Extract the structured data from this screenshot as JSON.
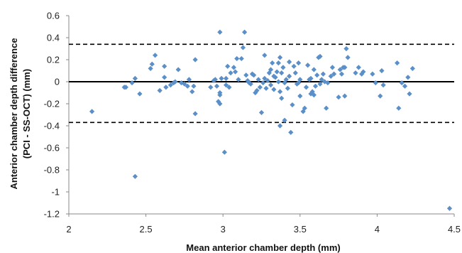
{
  "chart_data": {
    "type": "scatter",
    "title": "",
    "xlabel": "Mean anterior chamber depth (mm)",
    "ylabel_lines": [
      "Anterior chamber depth difference",
      "(PCI - SS-OCT) (mm)"
    ],
    "xlim": [
      2,
      4.5
    ],
    "ylim": [
      -1.2,
      0.6
    ],
    "x_ticks": [
      "2",
      "2.5",
      "3",
      "3.5",
      "4",
      "4.5"
    ],
    "y_ticks": [
      "0.6",
      "0.4",
      "0.2",
      "0",
      "-0.2",
      "-0.4",
      "-0.6",
      "-0.8",
      "-1",
      "-1.2"
    ],
    "grid": false,
    "legend": "none",
    "marker_color": "#5b8fc8",
    "reference_lines": [
      {
        "y": 0,
        "style": "solid"
      },
      {
        "y": 0.34,
        "style": "dashed"
      },
      {
        "y": -0.37,
        "style": "dashed"
      }
    ],
    "points": [
      [
        2.15,
        -0.27
      ],
      [
        2.36,
        -0.05
      ],
      [
        2.37,
        -0.05
      ],
      [
        2.41,
        -0.01
      ],
      [
        2.43,
        0.03
      ],
      [
        2.46,
        -0.11
      ],
      [
        2.43,
        -0.86
      ],
      [
        2.53,
        0.12
      ],
      [
        2.54,
        0.16
      ],
      [
        2.56,
        0.24
      ],
      [
        2.59,
        -0.08
      ],
      [
        2.62,
        0.14
      ],
      [
        2.62,
        0.04
      ],
      [
        2.63,
        -0.05
      ],
      [
        2.66,
        -0.03
      ],
      [
        2.68,
        -0.01
      ],
      [
        2.69,
        0.0
      ],
      [
        2.71,
        0.11
      ],
      [
        2.73,
        -0.01
      ],
      [
        2.75,
        -0.02
      ],
      [
        2.77,
        -0.04
      ],
      [
        2.78,
        0.02
      ],
      [
        2.8,
        -0.09
      ],
      [
        2.81,
        -0.04
      ],
      [
        2.82,
        0.2
      ],
      [
        2.82,
        -0.29
      ],
      [
        2.92,
        -0.05
      ],
      [
        2.94,
        0.01
      ],
      [
        2.95,
        0.02
      ],
      [
        2.96,
        -0.04
      ],
      [
        2.97,
        -0.18
      ],
      [
        2.98,
        -0.12
      ],
      [
        2.98,
        -0.1
      ],
      [
        2.98,
        -0.2
      ],
      [
        2.98,
        0.45
      ],
      [
        2.99,
        0.03
      ],
      [
        3.02,
        0.03
      ],
      [
        3.03,
        0.14
      ],
      [
        3.02,
        -0.03
      ],
      [
        3.04,
        -0.05
      ],
      [
        3.05,
        0.08
      ],
      [
        3.01,
        -0.64
      ],
      [
        3.07,
        0.13
      ],
      [
        3.08,
        0.09
      ],
      [
        3.09,
        0.21
      ],
      [
        3.1,
        0.02
      ],
      [
        3.12,
        0.21
      ],
      [
        3.13,
        0.31
      ],
      [
        3.14,
        0.45
      ],
      [
        3.15,
        0.06
      ],
      [
        3.16,
        0.01
      ],
      [
        3.17,
        -0.01
      ],
      [
        3.18,
        -0.02
      ],
      [
        3.19,
        0.07
      ],
      [
        3.2,
        0.06
      ],
      [
        3.21,
        -0.1
      ],
      [
        3.22,
        -0.08
      ],
      [
        3.23,
        0.02
      ],
      [
        3.24,
        -0.05
      ],
      [
        3.25,
        -0.28
      ],
      [
        3.26,
        -0.01
      ],
      [
        3.27,
        0.24
      ],
      [
        3.27,
        0.03
      ],
      [
        3.28,
        -0.06
      ],
      [
        3.29,
        0.01
      ],
      [
        3.3,
        0.08
      ],
      [
        3.31,
        0.11
      ],
      [
        3.31,
        -0.03
      ],
      [
        3.32,
        0.17
      ],
      [
        3.33,
        0.05
      ],
      [
        3.33,
        -0.07
      ],
      [
        3.34,
        0.04
      ],
      [
        3.35,
        0.09
      ],
      [
        3.36,
        0.0
      ],
      [
        3.36,
        0.17
      ],
      [
        3.37,
        -0.09
      ],
      [
        3.38,
        0.08
      ],
      [
        3.39,
        0.13
      ],
      [
        3.4,
        -0.01
      ],
      [
        3.41,
        0.02
      ],
      [
        3.37,
        0.22
      ],
      [
        3.37,
        -0.4
      ],
      [
        3.38,
        -0.15
      ],
      [
        3.4,
        -0.35
      ],
      [
        3.42,
        -0.06
      ],
      [
        3.43,
        0.18
      ],
      [
        3.43,
        0.05
      ],
      [
        3.44,
        -0.46
      ],
      [
        3.45,
        -0.21
      ],
      [
        3.46,
        0.14
      ],
      [
        3.47,
        0.08
      ],
      [
        3.48,
        -0.02
      ],
      [
        3.49,
        -0.01
      ],
      [
        3.49,
        0.17
      ],
      [
        3.5,
        0.02
      ],
      [
        3.5,
        -0.13
      ],
      [
        3.52,
        -0.27
      ],
      [
        3.53,
        -0.24
      ],
      [
        3.54,
        -0.05
      ],
      [
        3.55,
        0.15
      ],
      [
        3.56,
        0.02
      ],
      [
        3.57,
        0.03
      ],
      [
        3.57,
        -0.11
      ],
      [
        3.58,
        -0.09
      ],
      [
        3.59,
        -0.12
      ],
      [
        3.59,
        0.11
      ],
      [
        3.6,
        -0.04
      ],
      [
        3.61,
        0.06
      ],
      [
        3.62,
        0.22
      ],
      [
        3.63,
        0.23
      ],
      [
        3.63,
        -0.02
      ],
      [
        3.64,
        0.02
      ],
      [
        3.65,
        0.07
      ],
      [
        3.66,
        0.0
      ],
      [
        3.67,
        -0.24
      ],
      [
        3.68,
        -0.01
      ],
      [
        3.7,
        0.05
      ],
      [
        3.71,
        0.13
      ],
      [
        3.72,
        0.07
      ],
      [
        3.75,
        -0.14
      ],
      [
        3.76,
        0.11
      ],
      [
        3.77,
        0.07
      ],
      [
        3.78,
        0.13
      ],
      [
        3.79,
        0.13
      ],
      [
        3.79,
        -0.13
      ],
      [
        3.8,
        0.3
      ],
      [
        3.81,
        0.22
      ],
      [
        3.86,
        0.08
      ],
      [
        3.88,
        0.13
      ],
      [
        3.9,
        0.07
      ],
      [
        3.91,
        0.09
      ],
      [
        3.97,
        0.07
      ],
      [
        3.99,
        -0.01
      ],
      [
        4.02,
        -0.13
      ],
      [
        4.03,
        0.1
      ],
      [
        4.04,
        -0.03
      ],
      [
        4.13,
        0.17
      ],
      [
        4.14,
        -0.24
      ],
      [
        4.16,
        -0.01
      ],
      [
        4.18,
        -0.04
      ],
      [
        4.2,
        0.04
      ],
      [
        4.21,
        -0.11
      ],
      [
        4.23,
        0.12
      ],
      [
        4.47,
        -1.15
      ]
    ]
  }
}
